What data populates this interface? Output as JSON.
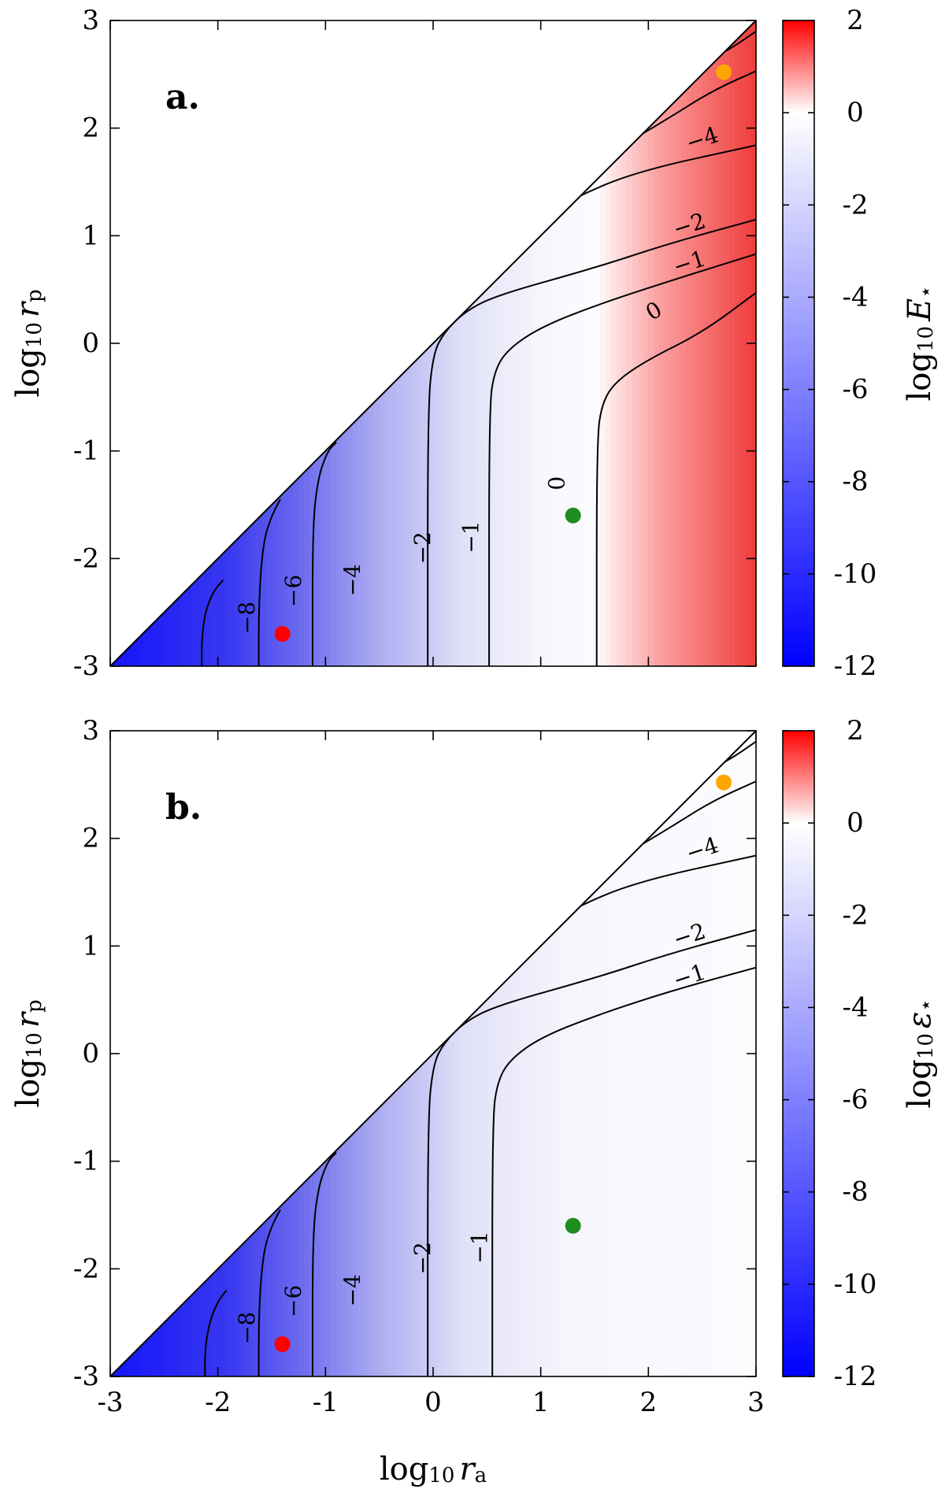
{
  "chart_data": [
    {
      "type": "heatmap",
      "panel_label": "a.",
      "xlabel": "",
      "ylabel": "log10 rp",
      "ylabel_parts": {
        "prefix": "log",
        "sub1": "10",
        "var": "r",
        "sub2": "p"
      },
      "colorbar_label": "log10 E⋆",
      "colorbar_label_parts": {
        "prefix": "log",
        "sub1": "10",
        "var": "E",
        "sub2": "⋆"
      },
      "xlim": [
        -3,
        3
      ],
      "ylim": [
        -3,
        3
      ],
      "x_ticks": [],
      "y_ticks": [
        "3",
        "2",
        "1",
        "0",
        "-1",
        "-2",
        "-3"
      ],
      "y_tick_values": [
        3,
        2,
        1,
        0,
        -1,
        -2,
        -3
      ],
      "colorbar_range": [
        -12,
        2
      ],
      "colorbar_ticks": [
        "2",
        "0",
        "-2",
        "-4",
        "-6",
        "-8",
        "-10",
        "-12"
      ],
      "colorbar_tick_values": [
        2,
        0,
        -2,
        -4,
        -6,
        -8,
        -10,
        -12
      ],
      "colormap": {
        "low": "#0000ff",
        "mid": "#ffffff",
        "high": "#ff0000"
      },
      "excluded_region": "rp > ra (upper-left triangle, blank)",
      "contours": [
        {
          "level": "−8",
          "points": [
            [
              -2.15,
              -3
            ],
            [
              -2.15,
              -2.75
            ],
            [
              -2.12,
              -2.5
            ],
            [
              -2.04,
              -2.3
            ],
            [
              -1.95,
              -2.2
            ]
          ]
        },
        {
          "level": "−6",
          "points": [
            [
              -1.62,
              -3
            ],
            [
              -1.62,
              -2.4
            ],
            [
              -1.58,
              -1.85
            ],
            [
              -1.5,
              -1.6
            ],
            [
              -1.42,
              -1.45
            ]
          ]
        },
        {
          "level": "−4",
          "points": [
            [
              -1.12,
              -3
            ],
            [
              -1.12,
              -1.7
            ],
            [
              -1.07,
              -1.25
            ],
            [
              -0.98,
              -1.0
            ],
            [
              -0.9,
              -0.92
            ]
          ]
        },
        {
          "level": "−2",
          "points": [
            [
              -0.05,
              -3
            ],
            [
              -0.05,
              -0.6
            ],
            [
              0,
              -0.1
            ],
            [
              0.1,
              0.1
            ],
            [
              0.3,
              0.3
            ],
            [
              0.6,
              0.45
            ],
            [
              1.5,
              0.7
            ],
            [
              2.2,
              0.93
            ],
            [
              3,
              1.15
            ]
          ]
        },
        {
          "level": "−1",
          "points": [
            [
              0.52,
              -3
            ],
            [
              0.52,
              -0.6
            ],
            [
              0.57,
              -0.25
            ],
            [
              0.7,
              -0.05
            ],
            [
              1.0,
              0.15
            ],
            [
              1.5,
              0.35
            ],
            [
              2.2,
              0.58
            ],
            [
              3,
              0.83
            ]
          ]
        },
        {
          "level": "0",
          "points": [
            [
              1.52,
              -3
            ],
            [
              1.52,
              -0.9
            ],
            [
              1.57,
              -0.55
            ],
            [
              1.7,
              -0.35
            ],
            [
              2.0,
              -0.15
            ],
            [
              2.5,
              0.1
            ],
            [
              3,
              0.47
            ]
          ]
        },
        {
          "level": "−4",
          "points": [
            [
              -0.7,
              -0.3
            ],
            [
              -0.5,
              -0.05
            ],
            [
              -0.2,
              0.3
            ],
            [
              0.2,
              0.65
            ],
            [
              0.7,
              1.0
            ],
            [
              1.3,
              1.35
            ],
            [
              1.9,
              1.6
            ],
            [
              3,
              1.84
            ]
          ]
        },
        {
          "level": "",
          "points": [
            [
              1.9,
              1.92
            ],
            [
              2.2,
              2.1
            ],
            [
              2.6,
              2.35
            ],
            [
              3,
              2.53
            ]
          ]
        },
        {
          "level": "",
          "points": [
            [
              2.6,
              2.65
            ],
            [
              2.8,
              2.76
            ],
            [
              3,
              2.9
            ]
          ]
        }
      ],
      "contour_labels": [
        {
          "text": "−8",
          "x": -1.73,
          "y": -2.55,
          "rotate": -90
        },
        {
          "text": "−6",
          "x": -1.3,
          "y": -2.3,
          "rotate": -90
        },
        {
          "text": "−4",
          "x": -0.75,
          "y": -2.2,
          "rotate": -90
        },
        {
          "text": "−2",
          "x": -0.1,
          "y": -1.9,
          "rotate": -90
        },
        {
          "text": "−1",
          "x": 0.35,
          "y": -1.8,
          "rotate": -90
        },
        {
          "text": "0",
          "x": 1.15,
          "y": -1.3,
          "rotate": -90
        },
        {
          "text": "0",
          "x": 2.05,
          "y": 0.3,
          "rotate": -30
        },
        {
          "text": "−1",
          "x": 2.38,
          "y": 0.75,
          "rotate": -18
        },
        {
          "text": "−2",
          "x": 2.38,
          "y": 1.1,
          "rotate": -18
        },
        {
          "text": "−4",
          "x": 2.5,
          "y": 1.9,
          "rotate": -18
        }
      ],
      "points": [
        {
          "name": "red",
          "x": -1.4,
          "y": -2.7,
          "color": "#ff0000"
        },
        {
          "name": "green",
          "x": 1.3,
          "y": -1.6,
          "color": "#1e8c1e"
        },
        {
          "name": "orange",
          "x": 2.7,
          "y": 2.52,
          "color": "#ffa500"
        }
      ]
    },
    {
      "type": "heatmap",
      "panel_label": "b.",
      "xlabel": "log10 ra",
      "xlabel_parts": {
        "prefix": "log",
        "sub1": "10",
        "var": "r",
        "sub2": "a"
      },
      "ylabel": "log10 rp",
      "ylabel_parts": {
        "prefix": "log",
        "sub1": "10",
        "var": "r",
        "sub2": "p"
      },
      "colorbar_label": "log10 ε⋆",
      "colorbar_label_parts": {
        "prefix": "log",
        "sub1": "10",
        "var": "ε",
        "sub2": "⋆"
      },
      "xlim": [
        -3,
        3
      ],
      "ylim": [
        -3,
        3
      ],
      "x_ticks": [
        "-3",
        "-2",
        "-1",
        "0",
        "1",
        "2",
        "3"
      ],
      "x_tick_values": [
        -3,
        -2,
        -1,
        0,
        1,
        2,
        3
      ],
      "y_ticks": [
        "3",
        "2",
        "1",
        "0",
        "-1",
        "-2",
        "-3"
      ],
      "y_tick_values": [
        3,
        2,
        1,
        0,
        -1,
        -2,
        -3
      ],
      "colorbar_range": [
        -12,
        2
      ],
      "colorbar_ticks": [
        "2",
        "0",
        "-2",
        "-4",
        "-6",
        "-8",
        "-10",
        "-12"
      ],
      "colorbar_tick_values": [
        2,
        0,
        -2,
        -4,
        -6,
        -8,
        -10,
        -12
      ],
      "colormap": {
        "low": "#0000ff",
        "mid": "#ffffff",
        "high": "#ff0000"
      },
      "excluded_region": "rp > ra (upper-left triangle, blank)",
      "contours": [
        {
          "level": "−8",
          "points": [
            [
              -2.12,
              -3
            ],
            [
              -2.12,
              -2.75
            ],
            [
              -2.08,
              -2.5
            ],
            [
              -2.0,
              -2.3
            ],
            [
              -1.92,
              -2.2
            ]
          ]
        },
        {
          "level": "−6",
          "points": [
            [
              -1.62,
              -3
            ],
            [
              -1.62,
              -2.4
            ],
            [
              -1.58,
              -1.85
            ],
            [
              -1.5,
              -1.6
            ],
            [
              -1.42,
              -1.45
            ]
          ]
        },
        {
          "level": "−4",
          "points": [
            [
              -1.12,
              -3
            ],
            [
              -1.12,
              -1.7
            ],
            [
              -1.07,
              -1.25
            ],
            [
              -0.98,
              -1.0
            ],
            [
              -0.9,
              -0.92
            ]
          ]
        },
        {
          "level": "−2",
          "points": [
            [
              -0.05,
              -3
            ],
            [
              -0.05,
              -0.6
            ],
            [
              0,
              -0.1
            ],
            [
              0.1,
              0.1
            ],
            [
              0.3,
              0.3
            ],
            [
              0.6,
              0.45
            ],
            [
              1.5,
              0.7
            ],
            [
              2.2,
              0.93
            ],
            [
              3,
              1.15
            ]
          ]
        },
        {
          "level": "−1",
          "points": [
            [
              0.55,
              -3
            ],
            [
              0.55,
              -0.6
            ],
            [
              0.6,
              -0.25
            ],
            [
              0.72,
              -0.05
            ],
            [
              1.0,
              0.15
            ],
            [
              1.5,
              0.35
            ],
            [
              2.2,
              0.58
            ],
            [
              3,
              0.8
            ]
          ]
        },
        {
          "level": "−4",
          "points": [
            [
              -0.7,
              -0.3
            ],
            [
              -0.5,
              -0.05
            ],
            [
              -0.2,
              0.3
            ],
            [
              0.2,
              0.65
            ],
            [
              0.7,
              1.0
            ],
            [
              1.3,
              1.35
            ],
            [
              1.9,
              1.6
            ],
            [
              3,
              1.84
            ]
          ]
        },
        {
          "level": "",
          "points": [
            [
              1.9,
              1.92
            ],
            [
              2.2,
              2.1
            ],
            [
              2.6,
              2.35
            ],
            [
              3,
              2.53
            ]
          ]
        },
        {
          "level": "",
          "points": [
            [
              2.6,
              2.65
            ],
            [
              2.8,
              2.76
            ],
            [
              3,
              2.9
            ]
          ]
        }
      ],
      "contour_labels": [
        {
          "text": "−8",
          "x": -1.73,
          "y": -2.55,
          "rotate": -90
        },
        {
          "text": "−6",
          "x": -1.3,
          "y": -2.3,
          "rotate": -90
        },
        {
          "text": "−4",
          "x": -0.75,
          "y": -2.2,
          "rotate": -90
        },
        {
          "text": "−2",
          "x": -0.1,
          "y": -1.9,
          "rotate": -90
        },
        {
          "text": "−1",
          "x": 0.43,
          "y": -1.8,
          "rotate": -90
        },
        {
          "text": "−1",
          "x": 2.38,
          "y": 0.72,
          "rotate": -18
        },
        {
          "text": "−2",
          "x": 2.38,
          "y": 1.1,
          "rotate": -18
        },
        {
          "text": "−4",
          "x": 2.5,
          "y": 1.9,
          "rotate": -18
        }
      ],
      "points": [
        {
          "name": "red",
          "x": -1.4,
          "y": -2.7,
          "color": "#ff0000"
        },
        {
          "name": "green",
          "x": 1.3,
          "y": -1.6,
          "color": "#1e8c1e"
        },
        {
          "name": "orange",
          "x": 2.7,
          "y": 2.52,
          "color": "#ffa500"
        }
      ]
    }
  ]
}
